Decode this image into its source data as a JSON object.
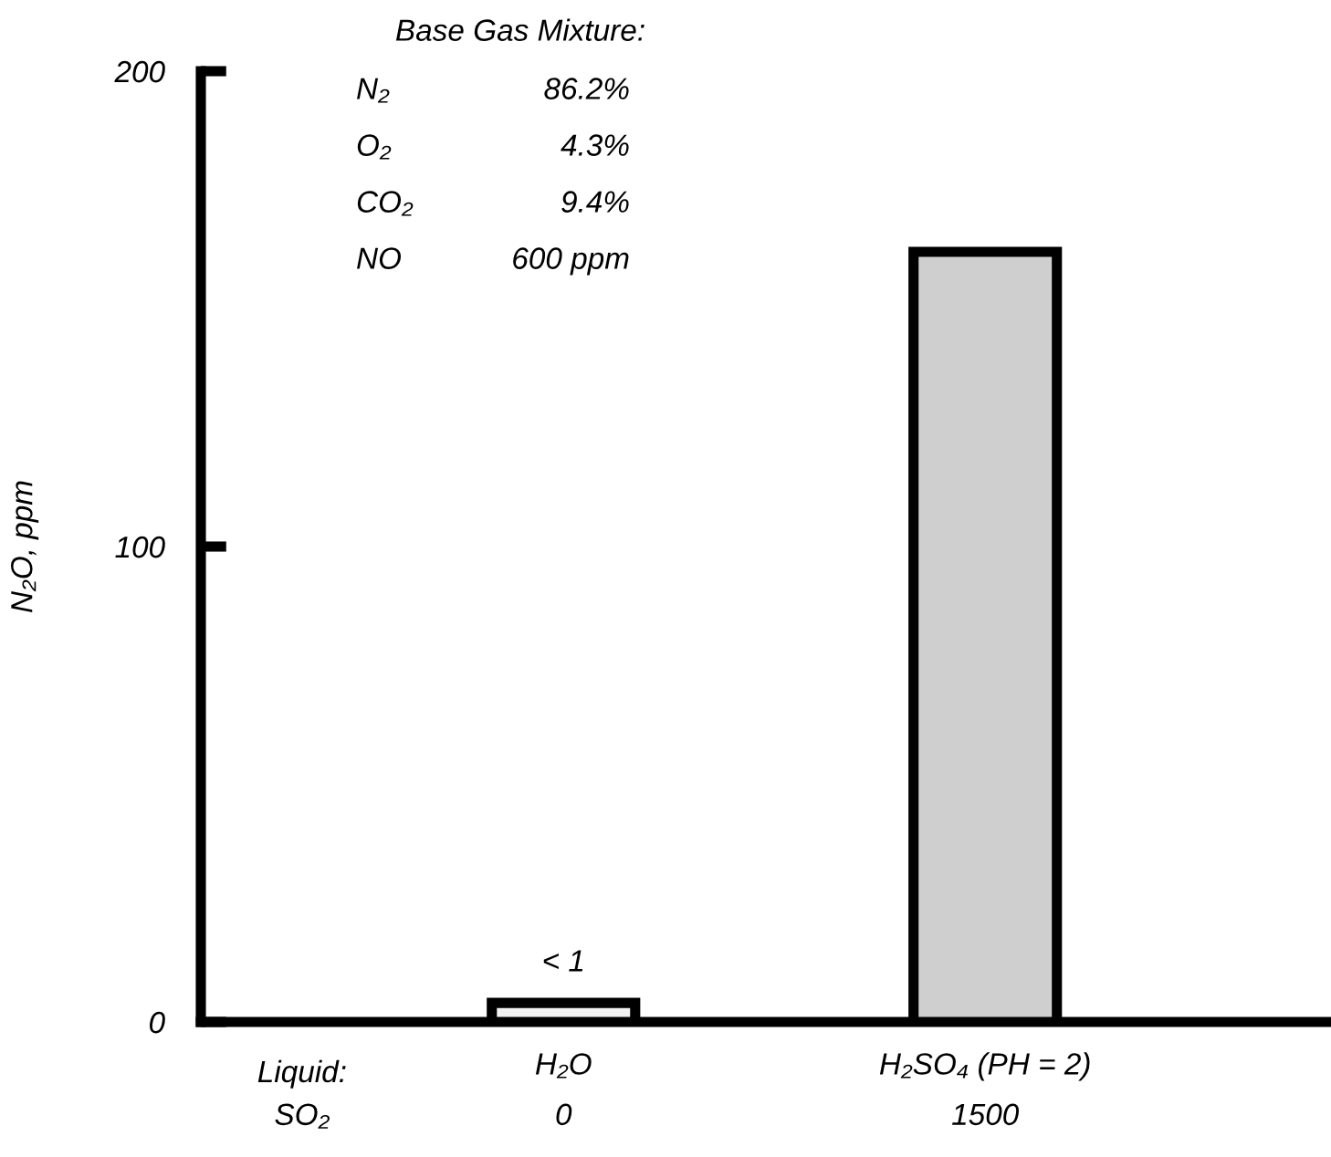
{
  "chart_data": {
    "type": "bar",
    "ylabel": "N₂O, ppm",
    "categories": [
      "H₂O",
      "H₂SO₄ (PH = 2)"
    ],
    "values": [
      4,
      162
    ],
    "colors": [
      "#f2f2f2",
      "#cfcfcf"
    ],
    "value_labels": [
      "< 1",
      null
    ],
    "ylim": [
      0,
      200
    ],
    "yticks": [
      0,
      100,
      200
    ],
    "grid": false,
    "legend": false,
    "annotations": [
      "Liquid:",
      "SO₂",
      "0",
      "1500",
      "Base Gas Mixture:",
      "N₂",
      "86.2%",
      "O₂",
      "4.3%",
      "CO₂",
      "9.4%",
      "NO",
      "600 ppm"
    ]
  }
}
